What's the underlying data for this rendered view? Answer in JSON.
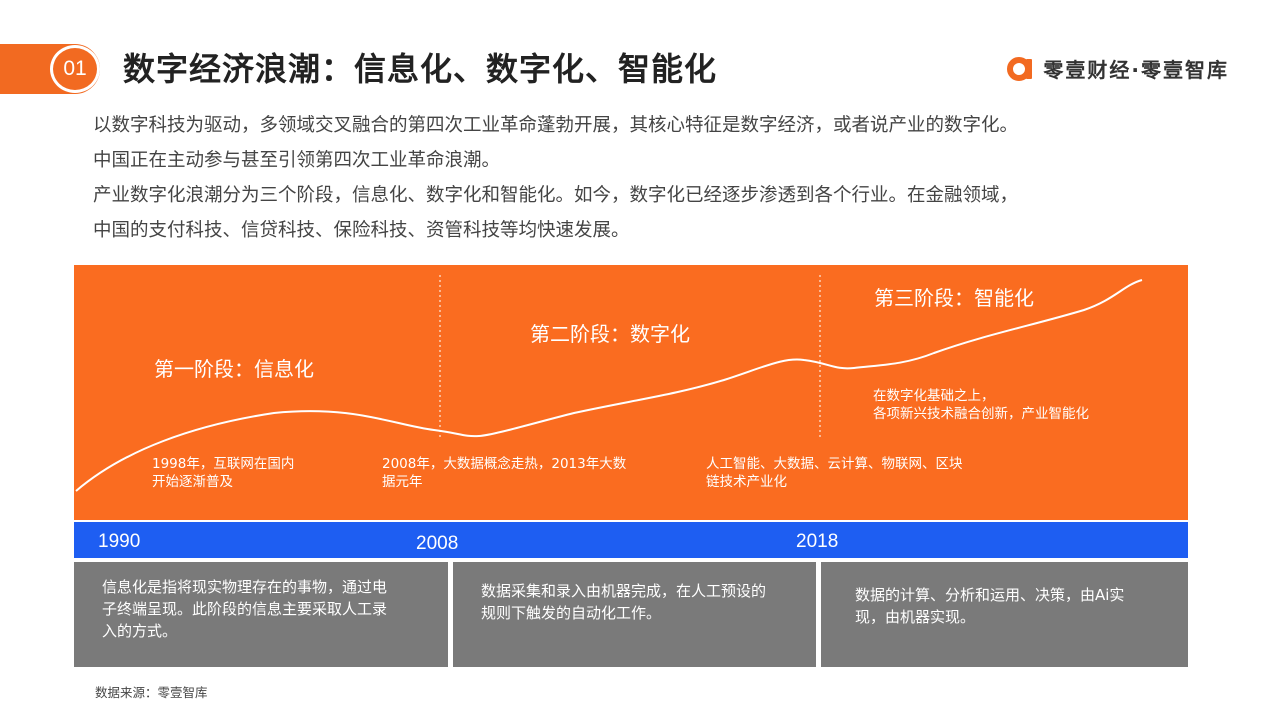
{
  "header": {
    "number": "01",
    "title": "数字经济浪潮：信息化、数字化、智能化",
    "brand": "零壹财经·零壹智库",
    "brand_color": "#f26a21"
  },
  "intro": [
    "以数字科技为驱动，多领域交叉融合的第四次工业革命蓬勃开展，其核心特征是数字经济，或者说产业的数字化。",
    "中国正在主动参与甚至引领第四次工业革命浪潮。",
    "产业数字化浪潮分为三个阶段，信息化、数字化和智能化。如今，数字化已经逐步渗透到各个行业。在金融领域，",
    "中国的支付科技、信贷科技、保险科技、资管科技等均快速发展。"
  ],
  "stages": [
    {
      "label": "第一阶段：信息化",
      "note": [
        "1998年，互联网在国内",
        "开始逐渐普及"
      ],
      "year": "1990",
      "description": [
        "信息化是指将现实物理存在的事物，通过电",
        "子终端呈现。此阶段的信息主要采取人工录",
        "入的方式。"
      ]
    },
    {
      "label": "第二阶段：数字化",
      "note": [
        "2008年，大数据概念走热，2013年大数",
        "据元年"
      ],
      "year": "2008",
      "description": [
        "数据采集和录入由机器完成，在人工预设的",
        "规则下触发的自动化工作。"
      ]
    },
    {
      "label": "第三阶段：智能化",
      "note": [
        "人工智能、大数据、云计算、物联网、区块",
        "链技术产业化"
      ],
      "note_top": [
        "在数字化基础之上，",
        "各项新兴技术融合创新，产业智能化"
      ],
      "year": "2018",
      "description": [
        "数据的计算、分析和运用、决策，由Ai实",
        "现，由机器实现。"
      ]
    }
  ],
  "colors": {
    "panel": "#fa6c20",
    "timeline": "#1e5ef2",
    "description_box": "#7a7a7a"
  },
  "source": "数据来源：零壹智库"
}
